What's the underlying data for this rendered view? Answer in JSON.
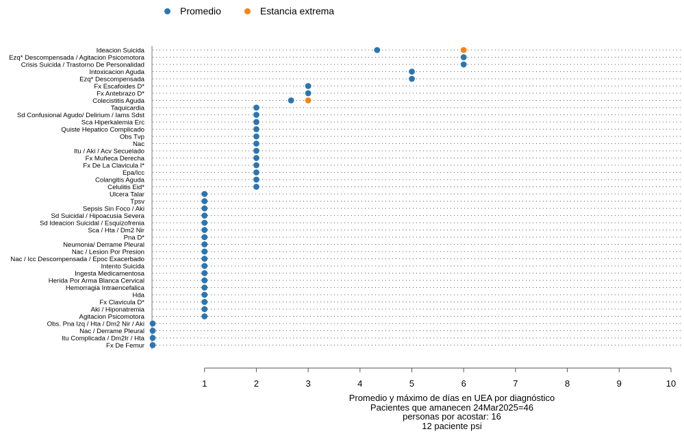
{
  "legend": {
    "items": [
      {
        "label": "Promedio",
        "color": "#2b76b1"
      },
      {
        "label": "Estancia extrema",
        "color": "#f58518"
      }
    ]
  },
  "caption": {
    "line1": "Promedio y máximo de días en UEA por diagnóstico",
    "line2": "Pacientes que amanecen  24Mar2025=46",
    "line3": "personas por acostar: 16",
    "line4": "12 paciente psi"
  },
  "chart_data": {
    "type": "scatter",
    "xlim": [
      0,
      10
    ],
    "x_ticks": [
      1,
      2,
      3,
      4,
      5,
      6,
      7,
      8,
      9,
      10
    ],
    "grid": true,
    "legend_position": "top-left",
    "colors": {
      "promedio": "#2b76b1",
      "extrema": "#f58518"
    },
    "categories": [
      "Ideacion Suicida",
      "Ezq* Descompensada / Agitacion Psicomotora",
      "Crisis Suicida / Trastorno De Personalidad",
      "Intoxicacion Aguda",
      "Ezq* Descompensada",
      "Fx Escafoides D*",
      "Fx Antebrazo D*",
      "Colecistitis Aguda",
      "Taquicardia",
      "Sd Confusional Agudo/ Delirium / Iams Sdst",
      "Sca Hiperkalemia Erc",
      "Quiste Hepatico Complicado",
      "Obs Tvp",
      "Nac",
      "Itu / Aki / Acv Secuelado",
      "Fx Muñeca Derecha",
      "Fx De La Clavicula I*",
      "Epa/Icc",
      "Colangitis Aguda",
      "Celulitis Eid*",
      "Ulcera Talar",
      "Tpsv",
      "Sepsis Sin Foco / Aki",
      "Sd Suicidal / Hipoacusia Severa",
      "Sd Ideacion Suicidal / Esquizofrenia",
      "Sca / Hta / Dm2 Nir",
      "Pna D*",
      "Neumonia/ Derrame Pleural",
      "Nac / Lesion Por Presion",
      "Nac / Icc Descompensada / Epoc Exacerbado",
      "Intento Suicida",
      "Ingesta Medicamentosa",
      "Herida Por Arma Blanca Cervical",
      "Hemorragia Intraencefalica",
      "Hda",
      "Fx Clavicula D*",
      "Aki / Hiponatremia",
      "Agitacion Psicomotora",
      "Obs. Pna Izq / Hta / Dm2 Nir / Aki",
      "Nac / Derrame Pleural",
      "Itu Complicada / Dm2Ir / Hta",
      "Fx De Femur"
    ],
    "series": [
      {
        "name": "Promedio",
        "values": [
          4.33,
          6,
          6,
          5,
          5,
          3,
          3,
          2.67,
          2,
          2,
          2,
          2,
          2,
          2,
          2,
          2,
          2,
          2,
          2,
          2,
          1,
          1,
          1,
          1,
          1,
          1,
          1,
          1,
          1,
          1,
          1,
          1,
          1,
          1,
          1,
          1,
          1,
          1,
          0,
          0,
          0,
          0
        ]
      },
      {
        "name": "Estancia extrema",
        "values": [
          6,
          null,
          null,
          null,
          null,
          null,
          null,
          3,
          null,
          null,
          null,
          null,
          null,
          null,
          null,
          null,
          null,
          null,
          null,
          null,
          null,
          null,
          null,
          null,
          null,
          null,
          null,
          null,
          null,
          null,
          null,
          null,
          null,
          null,
          null,
          null,
          null,
          null,
          null,
          null,
          null,
          null
        ]
      }
    ]
  }
}
